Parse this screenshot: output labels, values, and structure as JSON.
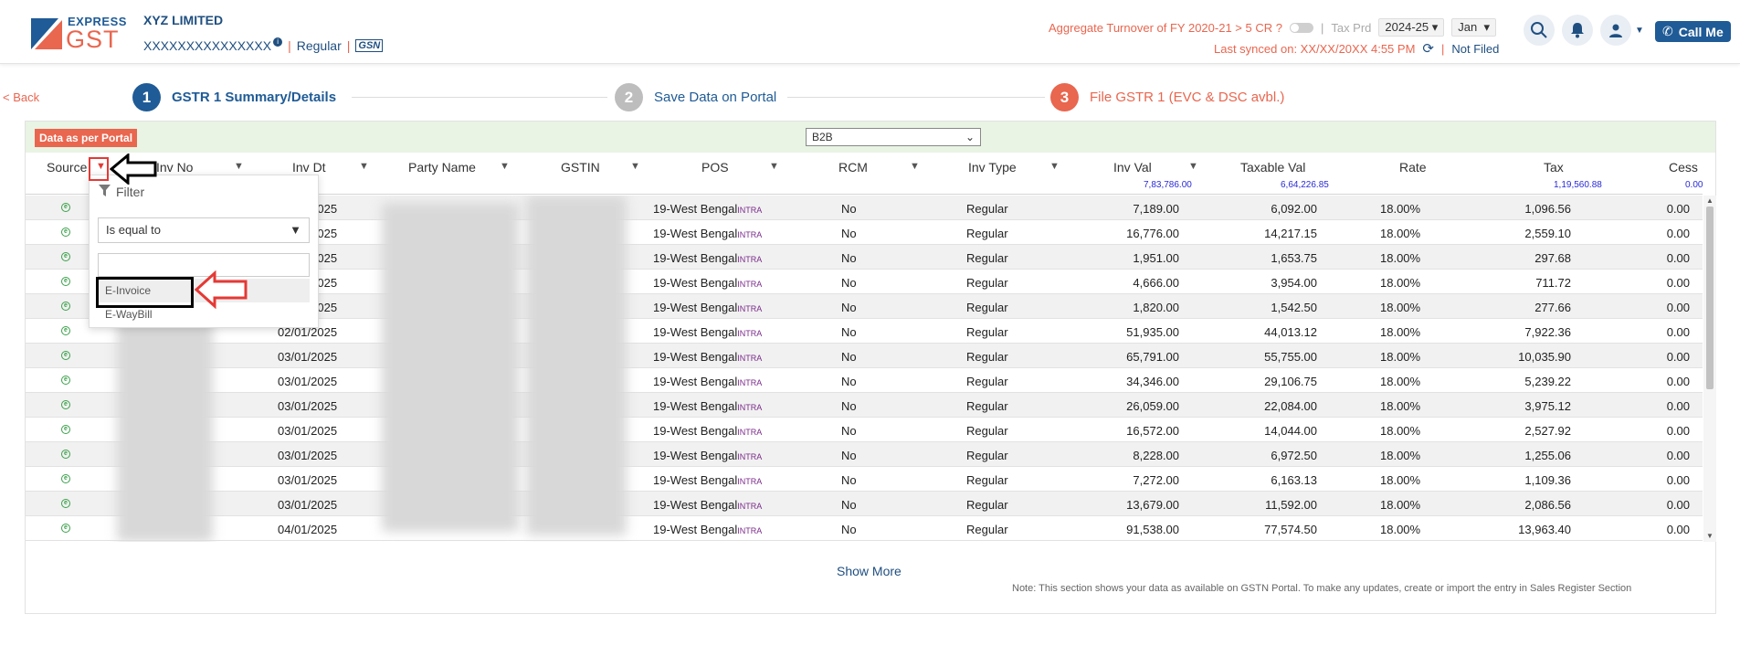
{
  "header": {
    "logo_express": "EXPRESS",
    "logo_gst": "GST",
    "company": "XYZ LIMITED",
    "gstin": "XXXXXXXXXXXXXXX",
    "info": "i",
    "reg_type": "Regular",
    "gsn": "GSN",
    "turnover_label": "Aggregate Turnover of FY 2020-21 > 5 CR ?",
    "tax_prd_label": "Tax Prd",
    "fy_value": "2024-25",
    "month_value": "Jan",
    "synced_label": "Last synced on: XX/XX/20XX 4:55 PM",
    "status": "Not Filed",
    "call_me": "Call Me",
    "accent": "#e9664f",
    "brand": "#1f5b96"
  },
  "nav": {
    "back": "< Back"
  },
  "stepper": [
    {
      "num": "1",
      "label": "GSTR 1 Summary/Details",
      "color": "#1f5b96"
    },
    {
      "num": "2",
      "label": "Save Data on Portal",
      "color": "#bdbdbd"
    },
    {
      "num": "3",
      "label": "File GSTR 1 (EVC & DSC avbl.)",
      "color": "#e9664f"
    }
  ],
  "panel": {
    "badge": "Data as per Portal",
    "section_select": "B2B",
    "show_more": "Show More",
    "note": "Note: This section shows your data as available on GSTN Portal. To make any updates, create or import the entry in Sales Register Section"
  },
  "columns": [
    "Source",
    "Inv No",
    "Inv Dt",
    "Party Name",
    "GSTIN",
    "POS",
    "RCM",
    "Inv Type",
    "Inv Val",
    "Taxable Val",
    "Rate",
    "Tax",
    "Cess"
  ],
  "totals": {
    "inv_val": "7,83,786.00",
    "taxable_val": "6,64,226.85",
    "tax": "1,19,560.88",
    "cess": "0.00"
  },
  "rows": [
    {
      "dt": "01/01/2025",
      "pos": "19-West Bengal",
      "pos_tag": "INTRA",
      "rcm": "No",
      "type": "Regular",
      "inv_val": "7,189.00",
      "taxable": "6,092.00",
      "rate": "18.00%",
      "tax": "1,096.56",
      "cess": "0.00"
    },
    {
      "dt": "01/01/2025",
      "pos": "19-West Bengal",
      "pos_tag": "INTRA",
      "rcm": "No",
      "type": "Regular",
      "inv_val": "16,776.00",
      "taxable": "14,217.15",
      "rate": "18.00%",
      "tax": "2,559.10",
      "cess": "0.00"
    },
    {
      "dt": "01/01/2025",
      "pos": "19-West Bengal",
      "pos_tag": "INTRA",
      "rcm": "No",
      "type": "Regular",
      "inv_val": "1,951.00",
      "taxable": "1,653.75",
      "rate": "18.00%",
      "tax": "297.68",
      "cess": "0.00"
    },
    {
      "dt": "01/01/2025",
      "pos": "19-West Bengal",
      "pos_tag": "INTRA",
      "rcm": "No",
      "type": "Regular",
      "inv_val": "4,666.00",
      "taxable": "3,954.00",
      "rate": "18.00%",
      "tax": "711.72",
      "cess": "0.00"
    },
    {
      "dt": "01/01/2025",
      "pos": "19-West Bengal",
      "pos_tag": "INTRA",
      "rcm": "No",
      "type": "Regular",
      "inv_val": "1,820.00",
      "taxable": "1,542.50",
      "rate": "18.00%",
      "tax": "277.66",
      "cess": "0.00"
    },
    {
      "dt": "02/01/2025",
      "pos": "19-West Bengal",
      "pos_tag": "INTRA",
      "rcm": "No",
      "type": "Regular",
      "inv_val": "51,935.00",
      "taxable": "44,013.12",
      "rate": "18.00%",
      "tax": "7,922.36",
      "cess": "0.00"
    },
    {
      "dt": "03/01/2025",
      "pos": "19-West Bengal",
      "pos_tag": "INTRA",
      "rcm": "No",
      "type": "Regular",
      "inv_val": "65,791.00",
      "taxable": "55,755.00",
      "rate": "18.00%",
      "tax": "10,035.90",
      "cess": "0.00"
    },
    {
      "dt": "03/01/2025",
      "pos": "19-West Bengal",
      "pos_tag": "INTRA",
      "rcm": "No",
      "type": "Regular",
      "inv_val": "34,346.00",
      "taxable": "29,106.75",
      "rate": "18.00%",
      "tax": "5,239.22",
      "cess": "0.00"
    },
    {
      "dt": "03/01/2025",
      "pos": "19-West Bengal",
      "pos_tag": "INTRA",
      "rcm": "No",
      "type": "Regular",
      "inv_val": "26,059.00",
      "taxable": "22,084.00",
      "rate": "18.00%",
      "tax": "3,975.12",
      "cess": "0.00"
    },
    {
      "dt": "03/01/2025",
      "pos": "19-West Bengal",
      "pos_tag": "INTRA",
      "rcm": "No",
      "type": "Regular",
      "inv_val": "16,572.00",
      "taxable": "14,044.00",
      "rate": "18.00%",
      "tax": "2,527.92",
      "cess": "0.00"
    },
    {
      "dt": "03/01/2025",
      "pos": "19-West Bengal",
      "pos_tag": "INTRA",
      "rcm": "No",
      "type": "Regular",
      "inv_val": "8,228.00",
      "taxable": "6,972.50",
      "rate": "18.00%",
      "tax": "1,255.06",
      "cess": "0.00"
    },
    {
      "dt": "03/01/2025",
      "pos": "19-West Bengal",
      "pos_tag": "INTRA",
      "rcm": "No",
      "type": "Regular",
      "inv_val": "7,272.00",
      "taxable": "6,163.13",
      "rate": "18.00%",
      "tax": "1,109.36",
      "cess": "0.00"
    },
    {
      "dt": "03/01/2025",
      "pos": "19-West Bengal",
      "pos_tag": "INTRA",
      "rcm": "No",
      "type": "Regular",
      "inv_val": "13,679.00",
      "taxable": "11,592.00",
      "rate": "18.00%",
      "tax": "2,086.56",
      "cess": "0.00"
    },
    {
      "dt": "04/01/2025",
      "pos": "19-West Bengal",
      "pos_tag": "INTRA",
      "rcm": "No",
      "type": "Regular",
      "inv_val": "91,538.00",
      "taxable": "77,574.50",
      "rate": "18.00%",
      "tax": "13,963.40",
      "cess": "0.00"
    }
  ],
  "filter": {
    "title": "Filter",
    "operator": "Is equal to",
    "value": "",
    "options": [
      "E-Invoice",
      "E-WayBill"
    ]
  }
}
